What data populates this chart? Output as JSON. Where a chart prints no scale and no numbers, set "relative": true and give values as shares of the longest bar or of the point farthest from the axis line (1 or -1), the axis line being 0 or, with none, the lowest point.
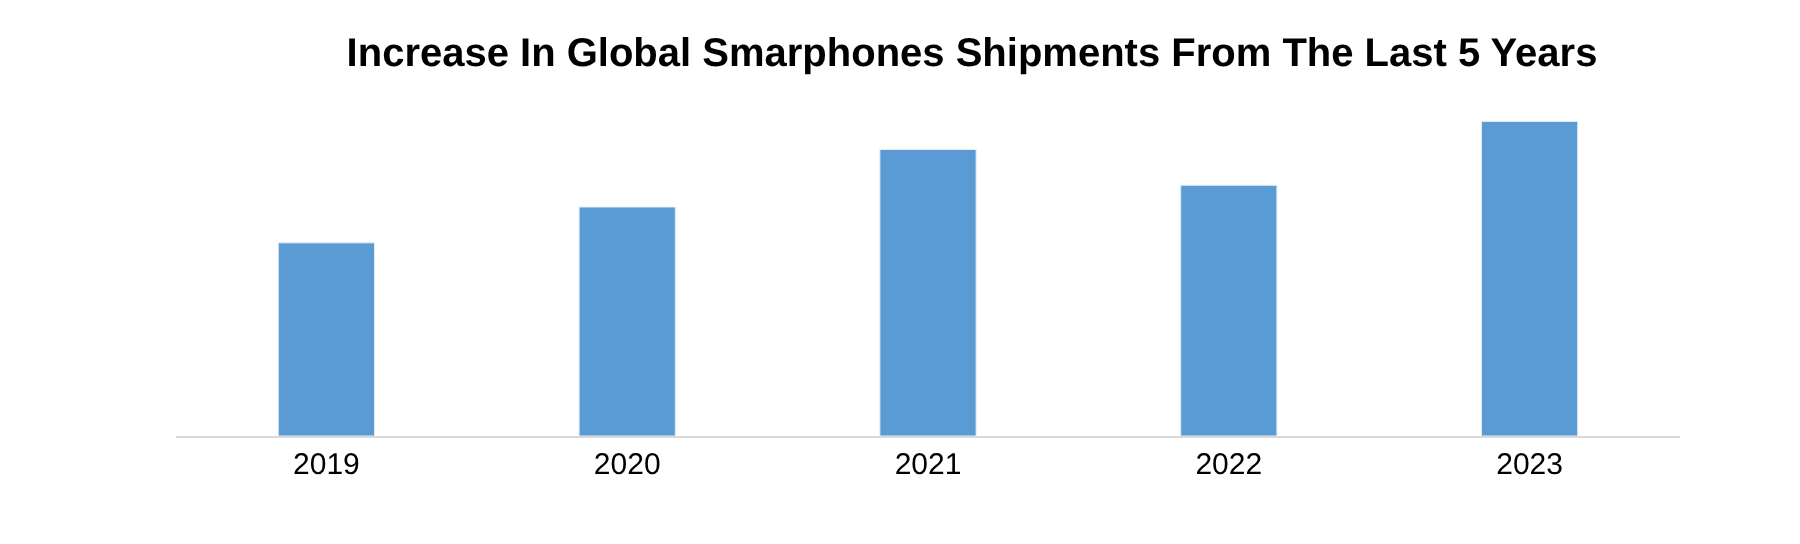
{
  "chart_data": {
    "type": "bar",
    "title": "Increase In Global Smarphones Shipments From The Last 5 Years",
    "categories": [
      "2019",
      "2020",
      "2021",
      "2022",
      "2023"
    ],
    "values": [
      0.614,
      0.728,
      0.911,
      0.797,
      1
    ],
    "color": "#5b9bd5",
    "relative": true
  }
}
